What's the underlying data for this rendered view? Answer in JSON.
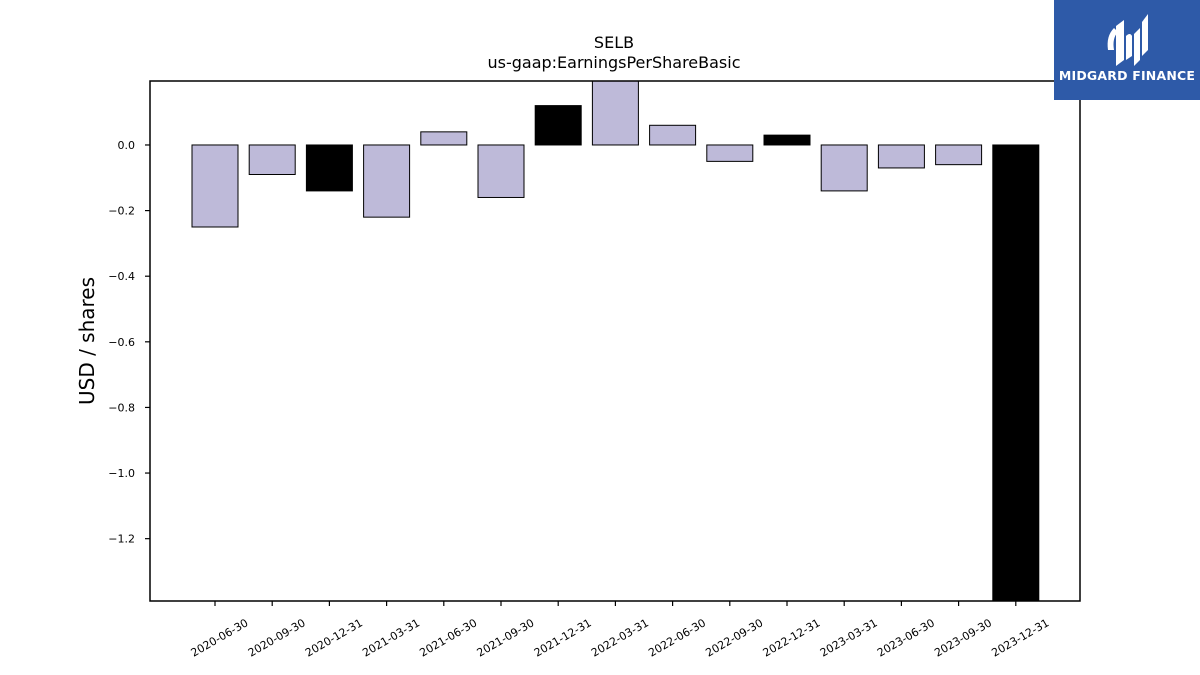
{
  "chart_data": {
    "type": "bar",
    "title": "SELB",
    "subtitle": "us-gaap:EarningsPerShareBasic",
    "ylabel": "USD / shares",
    "xlabel": "",
    "categories": [
      "2020-06-30",
      "2020-09-30",
      "2020-12-31",
      "2021-03-31",
      "2021-06-30",
      "2021-09-30",
      "2021-12-31",
      "2022-03-31",
      "2022-06-30",
      "2022-09-30",
      "2022-12-31",
      "2023-03-31",
      "2023-06-30",
      "2023-09-30",
      "2023-12-31"
    ],
    "values": [
      -0.25,
      -0.09,
      -0.14,
      -0.22,
      0.04,
      -0.16,
      0.12,
      0.2,
      0.06,
      -0.05,
      0.03,
      -0.14,
      -0.07,
      -0.06,
      -1.4
    ],
    "highlight": [
      false,
      false,
      true,
      false,
      false,
      false,
      true,
      false,
      false,
      false,
      true,
      false,
      false,
      false,
      true
    ],
    "ylim": [
      -1.39,
      0.195
    ],
    "yticks": [
      0.0,
      -0.2,
      -0.4,
      -0.6,
      -0.8,
      -1.0,
      -1.2
    ],
    "ytick_labels": [
      "0.0",
      "−0.2",
      "−0.4",
      "−0.6",
      "−0.8",
      "−1.0",
      "−1.2"
    ],
    "grid": false,
    "colors": {
      "bar": "#bebad9",
      "highlight": "#000000",
      "edge": "#000000"
    }
  },
  "logo": {
    "text": "MIDGARD FINANCE",
    "background": "#2e5aa8"
  }
}
